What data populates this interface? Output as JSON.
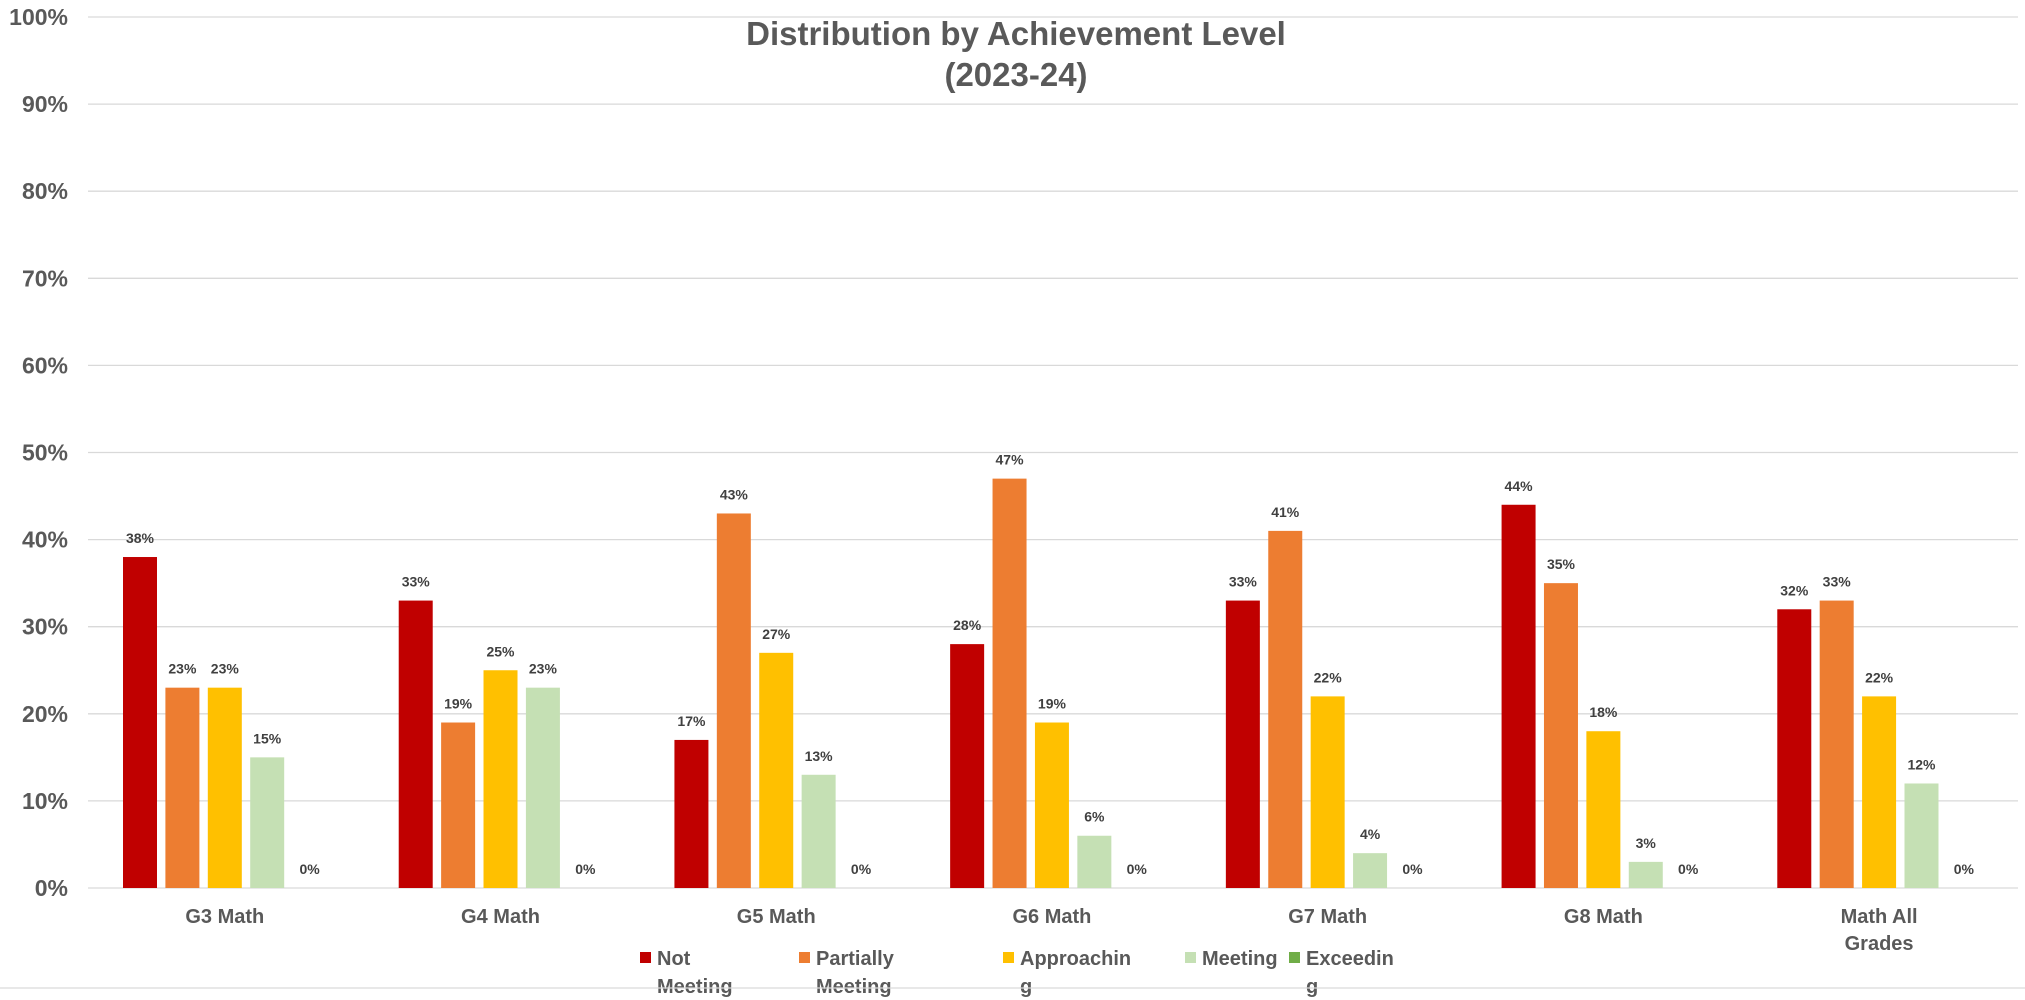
{
  "chart_data": {
    "type": "bar",
    "title": [
      "Distribution by Achievement Level",
      "(2023-24)"
    ],
    "categories": [
      [
        "G3 Math"
      ],
      [
        "G4 Math"
      ],
      [
        "G5 Math"
      ],
      [
        "G6 Math"
      ],
      [
        "G7 Math"
      ],
      [
        "G8 Math"
      ],
      [
        "Math All",
        "Grades"
      ]
    ],
    "series": [
      {
        "name": [
          "Not",
          "Meeting"
        ],
        "color": "#C00000",
        "values": [
          38,
          33,
          17,
          28,
          33,
          44,
          32
        ],
        "labels": [
          "38%",
          "33%",
          "17%",
          "28%",
          "33%",
          "44%",
          "32%"
        ]
      },
      {
        "name": [
          "Partially",
          "Meeting"
        ],
        "color": "#ED7D31",
        "values": [
          23,
          19,
          43,
          47,
          41,
          35,
          33
        ],
        "labels": [
          "23%",
          "19%",
          "43%",
          "47%",
          "41%",
          "35%",
          "33%"
        ]
      },
      {
        "name": [
          "Approachin",
          "g"
        ],
        "color": "#FFC000",
        "values": [
          23,
          25,
          27,
          19,
          22,
          18,
          22
        ],
        "labels": [
          "23%",
          "25%",
          "27%",
          "19%",
          "22%",
          "18%",
          "22%"
        ]
      },
      {
        "name": [
          "Meeting"
        ],
        "color": "#C5E0B4",
        "values": [
          15,
          23,
          13,
          6,
          4,
          3,
          12
        ],
        "labels": [
          "15%",
          "23%",
          "13%",
          "6%",
          "4%",
          "3%",
          "12%"
        ]
      },
      {
        "name": [
          "Exceedin",
          "g"
        ],
        "color": "#70AD47",
        "values": [
          0,
          0,
          0,
          0,
          0,
          0,
          0
        ],
        "labels": [
          "0%",
          "0%",
          "0%",
          "0%",
          "0%",
          "0%",
          "0%"
        ]
      }
    ],
    "ylim": [
      0,
      100
    ],
    "yticks": [
      "0%",
      "10%",
      "20%",
      "30%",
      "40%",
      "50%",
      "60%",
      "70%",
      "80%",
      "90%",
      "100%"
    ],
    "grid": true,
    "legend": "bottom",
    "colors": {
      "grid": "#D9D9D9",
      "text": "#595959"
    }
  }
}
